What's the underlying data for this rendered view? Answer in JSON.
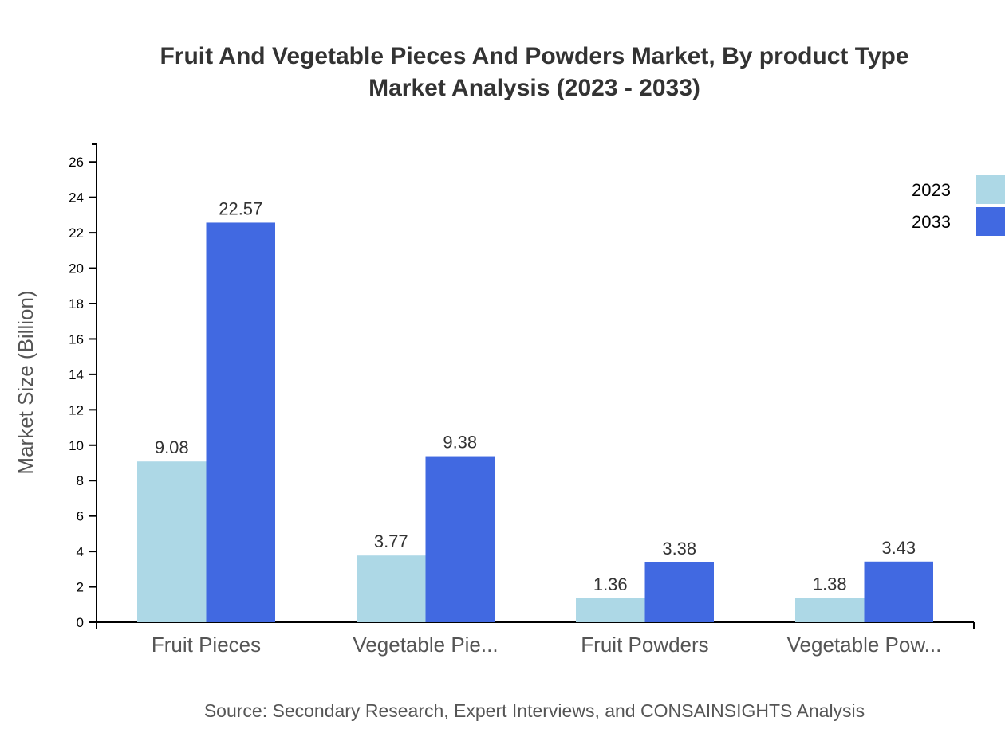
{
  "chart_data": {
    "type": "bar",
    "title": [
      "Fruit And Vegetable Pieces And Powders Market, By product Type",
      "Market Analysis (2023 - 2033)"
    ],
    "xlabel": "",
    "ylabel": "Market Size (Billion)",
    "categories": [
      "Fruit Pieces",
      "Vegetable Pie...",
      "Fruit Powders",
      "Vegetable Pow..."
    ],
    "series": [
      {
        "name": "2023",
        "color": "#add8e6",
        "values": [
          9.08,
          3.77,
          1.36,
          1.38
        ]
      },
      {
        "name": "2033",
        "color": "#4169e1",
        "values": [
          22.57,
          9.38,
          3.38,
          3.43
        ]
      }
    ],
    "ylim": [
      0,
      27
    ],
    "yticks": [
      0,
      2,
      4,
      6,
      8,
      10,
      12,
      14,
      16,
      18,
      20,
      22,
      24,
      26
    ],
    "grid": false,
    "legend_position": "top-right",
    "source": "Source: Secondary Research, Expert Interviews, and CONSAINSIGHTS Analysis"
  }
}
